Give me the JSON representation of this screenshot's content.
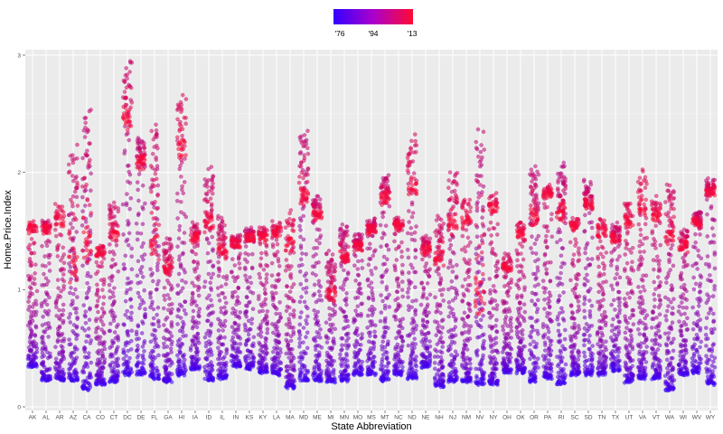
{
  "chart_data": {
    "type": "scatter",
    "title": "",
    "xlabel": "State Abbreviation",
    "ylabel": "Home.Price.Index",
    "categories": [
      "AK",
      "AL",
      "AR",
      "AZ",
      "CA",
      "CO",
      "CT",
      "DC",
      "DE",
      "FL",
      "GA",
      "HI",
      "IA",
      "ID",
      "IL",
      "IN",
      "KS",
      "KY",
      "LA",
      "MA",
      "MD",
      "ME",
      "MI",
      "MN",
      "MO",
      "MS",
      "MT",
      "NC",
      "ND",
      "NE",
      "NH",
      "NJ",
      "NM",
      "NV",
      "NY",
      "OH",
      "OK",
      "OR",
      "PA",
      "RI",
      "SC",
      "SD",
      "TN",
      "TX",
      "UT",
      "VA",
      "VT",
      "WA",
      "WI",
      "WV",
      "WY"
    ],
    "ylim": [
      0,
      3
    ],
    "yticks": [
      0,
      1,
      2,
      3
    ],
    "ytick_labels": [
      "0",
      "1",
      "2",
      "3"
    ],
    "grid": true,
    "color_legend": {
      "position": "top",
      "labels": [
        "'76",
        "'94",
        "'13"
      ],
      "color_low": "#3300ff",
      "color_high": "#ff0a33"
    },
    "series_summary": [
      {
        "state": "AK",
        "min": 0.35,
        "max": 1.56,
        "last": 1.52
      },
      {
        "state": "AL",
        "min": 0.23,
        "max": 1.57,
        "last": 1.52
      },
      {
        "state": "AR",
        "min": 0.23,
        "max": 1.7,
        "last": 1.6
      },
      {
        "state": "AZ",
        "min": 0.23,
        "max": 2.2,
        "last": 1.3
      },
      {
        "state": "CA",
        "min": 0.15,
        "max": 2.53,
        "last": 1.5
      },
      {
        "state": "CO",
        "min": 0.2,
        "max": 1.35,
        "last": 1.32
      },
      {
        "state": "CT",
        "min": 0.22,
        "max": 1.74,
        "last": 1.5
      },
      {
        "state": "DC",
        "min": 0.28,
        "max": 2.9,
        "last": 2.5
      },
      {
        "state": "DE",
        "min": 0.28,
        "max": 2.25,
        "last": 2.1
      },
      {
        "state": "FL",
        "min": 0.25,
        "max": 2.42,
        "last": 1.5
      },
      {
        "state": "GA",
        "min": 0.22,
        "max": 1.42,
        "last": 1.2
      },
      {
        "state": "HI",
        "min": 0.28,
        "max": 2.62,
        "last": 2.25
      },
      {
        "state": "IA",
        "min": 0.33,
        "max": 1.55,
        "last": 1.45
      },
      {
        "state": "ID",
        "min": 0.23,
        "max": 2.02,
        "last": 1.6
      },
      {
        "state": "IL",
        "min": 0.25,
        "max": 1.6,
        "last": 1.35
      },
      {
        "state": "IN",
        "min": 0.35,
        "max": 1.43,
        "last": 1.4
      },
      {
        "state": "KS",
        "min": 0.33,
        "max": 1.5,
        "last": 1.45
      },
      {
        "state": "KY",
        "min": 0.3,
        "max": 1.53,
        "last": 1.45
      },
      {
        "state": "LA",
        "min": 0.28,
        "max": 1.55,
        "last": 1.5
      },
      {
        "state": "MA",
        "min": 0.17,
        "max": 1.65,
        "last": 1.4
      },
      {
        "state": "MD",
        "min": 0.23,
        "max": 2.35,
        "last": 1.85
      },
      {
        "state": "ME",
        "min": 0.23,
        "max": 1.77,
        "last": 1.65
      },
      {
        "state": "MI",
        "min": 0.22,
        "max": 1.3,
        "last": 1.0
      },
      {
        "state": "MN",
        "min": 0.23,
        "max": 1.55,
        "last": 1.3
      },
      {
        "state": "MO",
        "min": 0.28,
        "max": 1.45,
        "last": 1.38
      },
      {
        "state": "MS",
        "min": 0.28,
        "max": 1.58,
        "last": 1.52
      },
      {
        "state": "MT",
        "min": 0.23,
        "max": 1.95,
        "last": 1.8
      },
      {
        "state": "NC",
        "min": 0.28,
        "max": 1.6,
        "last": 1.55
      },
      {
        "state": "ND",
        "min": 0.25,
        "max": 2.3,
        "last": 1.9
      },
      {
        "state": "NE",
        "min": 0.35,
        "max": 1.45,
        "last": 1.35
      },
      {
        "state": "NH",
        "min": 0.18,
        "max": 1.6,
        "last": 1.3
      },
      {
        "state": "NJ",
        "min": 0.22,
        "max": 2.0,
        "last": 1.6
      },
      {
        "state": "NM",
        "min": 0.22,
        "max": 1.78,
        "last": 1.6
      },
      {
        "state": "NV",
        "min": 0.2,
        "max": 2.35,
        "last": 1.1
      },
      {
        "state": "NY",
        "min": 0.2,
        "max": 1.78,
        "last": 1.7
      },
      {
        "state": "OH",
        "min": 0.3,
        "max": 1.28,
        "last": 1.2
      },
      {
        "state": "OK",
        "min": 0.3,
        "max": 1.57,
        "last": 1.48
      },
      {
        "state": "OR",
        "min": 0.22,
        "max": 2.05,
        "last": 1.65
      },
      {
        "state": "PA",
        "min": 0.25,
        "max": 1.87,
        "last": 1.82
      },
      {
        "state": "RI",
        "min": 0.2,
        "max": 2.05,
        "last": 1.7
      },
      {
        "state": "SC",
        "min": 0.28,
        "max": 1.6,
        "last": 1.55
      },
      {
        "state": "SD",
        "min": 0.28,
        "max": 1.9,
        "last": 1.75
      },
      {
        "state": "TN",
        "min": 0.28,
        "max": 1.58,
        "last": 1.5
      },
      {
        "state": "TX",
        "min": 0.32,
        "max": 1.55,
        "last": 1.45
      },
      {
        "state": "UT",
        "min": 0.22,
        "max": 1.75,
        "last": 1.6
      },
      {
        "state": "VA",
        "min": 0.25,
        "max": 2.0,
        "last": 1.72
      },
      {
        "state": "VT",
        "min": 0.25,
        "max": 1.78,
        "last": 1.65
      },
      {
        "state": "WA",
        "min": 0.15,
        "max": 1.9,
        "last": 1.5
      },
      {
        "state": "WI",
        "min": 0.28,
        "max": 1.5,
        "last": 1.38
      },
      {
        "state": "WV",
        "min": 0.3,
        "max": 1.65,
        "last": 1.58
      },
      {
        "state": "WY",
        "min": 0.2,
        "max": 1.92,
        "last": 1.85
      }
    ]
  }
}
